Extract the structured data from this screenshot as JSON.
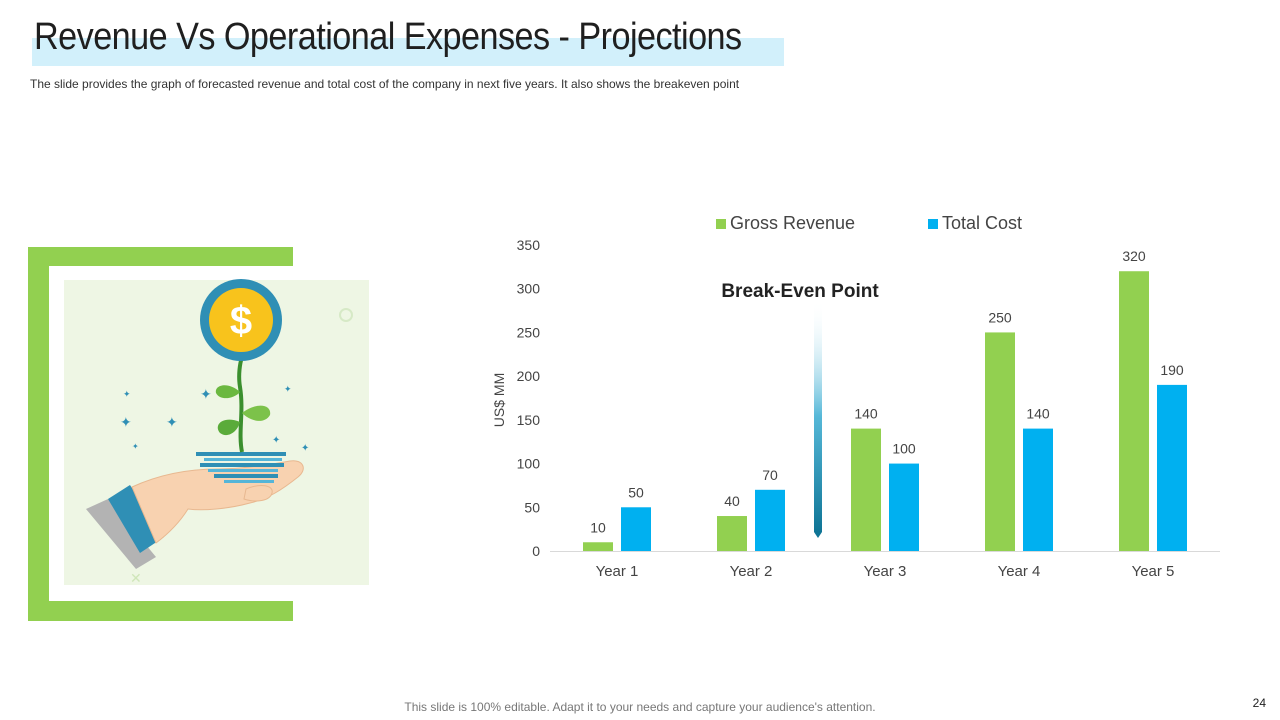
{
  "slide": {
    "title": "Revenue Vs Operational Expenses - Projections",
    "subtitle": "The slide provides  the graph  of forecasted  revenue  and total cost of the company  in next five  years. It also shows the breakeven  point",
    "footer": "This slide is 100% editable. Adapt it to your needs and capture your audience's attention.",
    "page_number": "24"
  },
  "illustration": {
    "coin_symbol": "$"
  },
  "colors": {
    "revenue": "#92d050",
    "cost": "#00b0f0",
    "accent_green": "#92d050",
    "highlight": "#d2f0fb"
  },
  "chart_data": {
    "type": "bar",
    "categories": [
      "Year 1",
      "Year 2",
      "Year 3",
      "Year 4",
      "Year 5"
    ],
    "series": [
      {
        "name": "Gross Revenue",
        "values": [
          10,
          40,
          140,
          250,
          320
        ],
        "color": "#92d050"
      },
      {
        "name": "Total Cost",
        "values": [
          50,
          70,
          100,
          140,
          190
        ],
        "color": "#00b0f0"
      }
    ],
    "ylabel": "US$ MM",
    "xlabel": "",
    "ylim": [
      0,
      350
    ],
    "yticks": [
      0,
      50,
      100,
      150,
      200,
      250,
      300,
      350
    ],
    "legend_position": "top",
    "annotation": {
      "label": "Break-Even Point",
      "between": [
        "Year 2",
        "Year 3"
      ]
    },
    "grid": false
  }
}
